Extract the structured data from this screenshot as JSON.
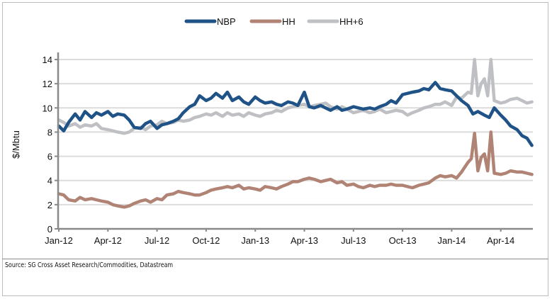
{
  "chart_data": {
    "type": "line",
    "title": "",
    "xlabel": "",
    "ylabel": "$/Mbtu",
    "ylim": [
      0,
      14
    ],
    "yticks": [
      "0",
      "2",
      "4",
      "6",
      "8",
      "10",
      "12",
      "14"
    ],
    "xticks": [
      "Jan-12",
      "Apr-12",
      "Jul-12",
      "Oct-12",
      "Jan-13",
      "Apr-13",
      "Jul-13",
      "Oct-13",
      "Jan-14",
      "Apr-14"
    ],
    "x_unit": "months since Jan-12",
    "xlim": [
      0,
      29
    ],
    "grid": "horizontal",
    "legend_position": "top-center",
    "source": "Source: SG Cross Asset Research/Commodities, Datastream",
    "series": [
      {
        "name": "NBP",
        "color": "#1f5286",
        "x": [
          0,
          0.3,
          0.6,
          1.0,
          1.3,
          1.6,
          2.0,
          2.3,
          2.6,
          3.0,
          3.3,
          3.6,
          4.0,
          4.3,
          4.6,
          5.0,
          5.3,
          5.6,
          6.0,
          6.3,
          6.6,
          7.0,
          7.3,
          7.6,
          8.0,
          8.3,
          8.6,
          9.0,
          9.3,
          9.6,
          10.0,
          10.3,
          10.6,
          11.0,
          11.3,
          11.6,
          12.0,
          12.3,
          12.6,
          13.0,
          13.3,
          13.6,
          14.0,
          14.3,
          14.6,
          15.0,
          15.3,
          15.6,
          16.0,
          16.3,
          16.6,
          17.0,
          17.3,
          17.6,
          18.0,
          18.3,
          18.6,
          19.0,
          19.3,
          19.6,
          20.0,
          20.3,
          20.6,
          21.0,
          21.3,
          21.6,
          22.0,
          22.3,
          22.6,
          23.0,
          23.3,
          23.6,
          24.0,
          24.3,
          24.6,
          25.0,
          25.3,
          25.6,
          26.0,
          26.3,
          26.6,
          27.0,
          27.3,
          27.6,
          28.0,
          28.3,
          28.6,
          28.9
        ],
        "values": [
          8.5,
          8.1,
          8.8,
          9.5,
          9.0,
          9.7,
          9.2,
          9.6,
          9.4,
          9.7,
          9.3,
          9.5,
          9.4,
          9.0,
          8.4,
          8.3,
          8.7,
          8.9,
          8.3,
          8.6,
          8.7,
          8.9,
          9.1,
          9.6,
          10.1,
          10.3,
          11.0,
          10.6,
          10.8,
          11.2,
          10.8,
          11.3,
          10.6,
          10.9,
          10.5,
          10.3,
          10.9,
          10.6,
          10.4,
          10.5,
          10.3,
          10.2,
          10.5,
          10.4,
          10.2,
          11.3,
          10.1,
          10.0,
          10.2,
          10.0,
          9.8,
          10.1,
          9.8,
          9.9,
          10.1,
          10.0,
          9.9,
          10.0,
          9.9,
          10.1,
          10.3,
          10.6,
          10.4,
          11.1,
          11.2,
          11.3,
          11.4,
          11.6,
          11.5,
          12.1,
          11.6,
          11.5,
          11.4,
          11.0,
          10.6,
          10.2,
          9.5,
          9.7,
          9.4,
          9.2,
          10.0,
          9.4,
          9.0,
          8.5,
          8.2,
          7.7,
          7.5,
          6.9
        ]
      },
      {
        "name": "HH",
        "color": "#b08374",
        "x": [
          0,
          0.3,
          0.6,
          1.0,
          1.3,
          1.6,
          2.0,
          2.3,
          2.6,
          3.0,
          3.3,
          3.6,
          4.0,
          4.3,
          4.6,
          5.0,
          5.3,
          5.6,
          6.0,
          6.3,
          6.6,
          7.0,
          7.3,
          7.6,
          8.0,
          8.3,
          8.6,
          9.0,
          9.3,
          9.6,
          10.0,
          10.3,
          10.6,
          11.0,
          11.3,
          11.6,
          12.0,
          12.3,
          12.6,
          13.0,
          13.3,
          13.6,
          14.0,
          14.3,
          14.6,
          15.0,
          15.3,
          15.6,
          16.0,
          16.3,
          16.6,
          17.0,
          17.3,
          17.6,
          18.0,
          18.3,
          18.6,
          19.0,
          19.3,
          19.6,
          20.0,
          20.3,
          20.6,
          21.0,
          21.3,
          21.6,
          22.0,
          22.3,
          22.6,
          23.0,
          23.3,
          23.6,
          24.0,
          24.3,
          24.6,
          25.0,
          25.2,
          25.4,
          25.6,
          25.8,
          26.0,
          26.2,
          26.4,
          26.6,
          27.0,
          27.3,
          27.6,
          28.0,
          28.3,
          28.6,
          28.9
        ],
        "values": [
          2.9,
          2.8,
          2.4,
          2.3,
          2.6,
          2.4,
          2.5,
          2.4,
          2.3,
          2.2,
          2.0,
          1.9,
          1.8,
          1.9,
          2.1,
          2.3,
          2.4,
          2.2,
          2.5,
          2.4,
          2.8,
          2.9,
          3.1,
          3.0,
          2.9,
          2.8,
          2.8,
          3.0,
          3.2,
          3.3,
          3.4,
          3.5,
          3.4,
          3.6,
          3.3,
          3.4,
          3.3,
          3.2,
          3.5,
          3.4,
          3.3,
          3.5,
          3.7,
          3.9,
          3.9,
          4.1,
          4.2,
          4.1,
          3.9,
          4.0,
          4.1,
          3.8,
          3.9,
          3.6,
          3.7,
          3.5,
          3.4,
          3.6,
          3.5,
          3.6,
          3.6,
          3.7,
          3.6,
          3.6,
          3.5,
          3.4,
          3.6,
          3.7,
          3.8,
          4.2,
          4.4,
          4.3,
          4.4,
          4.2,
          4.7,
          5.5,
          5.8,
          7.9,
          4.8,
          5.9,
          6.2,
          4.8,
          8.0,
          4.6,
          4.5,
          4.6,
          4.8,
          4.7,
          4.7,
          4.6,
          4.5
        ]
      },
      {
        "name": "HH+6",
        "color": "#bfc0c4",
        "x": [
          0,
          0.3,
          0.6,
          1.0,
          1.3,
          1.6,
          2.0,
          2.3,
          2.6,
          3.0,
          3.3,
          3.6,
          4.0,
          4.3,
          4.6,
          5.0,
          5.3,
          5.6,
          6.0,
          6.3,
          6.6,
          7.0,
          7.3,
          7.6,
          8.0,
          8.3,
          8.6,
          9.0,
          9.3,
          9.6,
          10.0,
          10.3,
          10.6,
          11.0,
          11.3,
          11.6,
          12.0,
          12.3,
          12.6,
          13.0,
          13.3,
          13.6,
          14.0,
          14.3,
          14.6,
          15.0,
          15.3,
          15.6,
          16.0,
          16.3,
          16.6,
          17.0,
          17.3,
          17.6,
          18.0,
          18.3,
          18.6,
          19.0,
          19.3,
          19.6,
          20.0,
          20.3,
          20.6,
          21.0,
          21.3,
          21.6,
          22.0,
          22.3,
          22.6,
          23.0,
          23.3,
          23.6,
          24.0,
          24.3,
          24.6,
          25.0,
          25.2,
          25.4,
          25.6,
          25.8,
          26.0,
          26.2,
          26.4,
          26.6,
          27.0,
          27.3,
          27.6,
          28.0,
          28.3,
          28.6,
          28.9
        ],
        "values": [
          9.0,
          8.8,
          8.5,
          8.7,
          8.4,
          8.6,
          8.5,
          8.7,
          8.3,
          8.2,
          8.1,
          8.0,
          7.9,
          8.0,
          8.3,
          8.4,
          8.2,
          8.5,
          8.6,
          8.9,
          8.7,
          8.8,
          9.0,
          8.9,
          9.0,
          9.2,
          9.3,
          9.5,
          9.4,
          9.6,
          9.3,
          9.6,
          9.4,
          9.5,
          9.3,
          9.6,
          9.4,
          9.3,
          9.5,
          9.6,
          9.8,
          9.7,
          10.0,
          10.1,
          10.2,
          10.3,
          10.1,
          10.2,
          10.3,
          10.4,
          10.1,
          9.9,
          10.1,
          9.9,
          9.6,
          9.7,
          9.8,
          9.6,
          9.7,
          9.9,
          9.6,
          9.7,
          9.8,
          9.7,
          9.4,
          9.6,
          9.8,
          10.0,
          10.1,
          10.3,
          10.3,
          10.5,
          10.2,
          10.9,
          10.8,
          11.3,
          11.2,
          14.0,
          11.0,
          12.0,
          12.4,
          11.0,
          14.0,
          10.6,
          10.4,
          10.5,
          10.7,
          10.8,
          10.6,
          10.4,
          10.5
        ]
      }
    ]
  }
}
